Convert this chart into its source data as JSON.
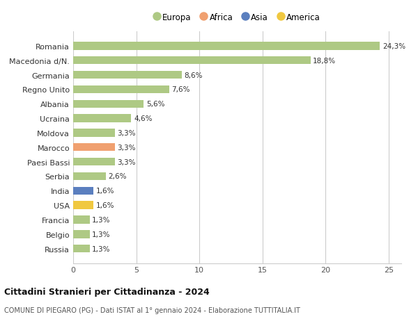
{
  "countries": [
    "Romania",
    "Macedonia d/N.",
    "Germania",
    "Regno Unito",
    "Albania",
    "Ucraina",
    "Moldova",
    "Marocco",
    "Paesi Bassi",
    "Serbia",
    "India",
    "USA",
    "Francia",
    "Belgio",
    "Russia"
  ],
  "values": [
    24.3,
    18.8,
    8.6,
    7.6,
    5.6,
    4.6,
    3.3,
    3.3,
    3.3,
    2.6,
    1.6,
    1.6,
    1.3,
    1.3,
    1.3
  ],
  "labels": [
    "24,3%",
    "18,8%",
    "8,6%",
    "7,6%",
    "5,6%",
    "4,6%",
    "3,3%",
    "3,3%",
    "3,3%",
    "2,6%",
    "1,6%",
    "1,6%",
    "1,3%",
    "1,3%",
    "1,3%"
  ],
  "continents": [
    "Europa",
    "Europa",
    "Europa",
    "Europa",
    "Europa",
    "Europa",
    "Europa",
    "Africa",
    "Europa",
    "Europa",
    "Asia",
    "America",
    "Europa",
    "Europa",
    "Europa"
  ],
  "colors": {
    "Europa": "#aec984",
    "Africa": "#f0a070",
    "Asia": "#5b7fbf",
    "America": "#f0c840"
  },
  "legend_order": [
    "Europa",
    "Africa",
    "Asia",
    "America"
  ],
  "legend_colors": [
    "#aec984",
    "#f0a070",
    "#5b7fbf",
    "#f0c840"
  ],
  "title": "Cittadini Stranieri per Cittadinanza - 2024",
  "subtitle": "COMUNE DI PIEGARO (PG) - Dati ISTAT al 1° gennaio 2024 - Elaborazione TUTTITALIA.IT",
  "xlim": [
    0,
    26
  ],
  "xticks": [
    0,
    5,
    10,
    15,
    20,
    25
  ],
  "background_color": "#ffffff",
  "bar_height": 0.55,
  "grid_color": "#cccccc"
}
